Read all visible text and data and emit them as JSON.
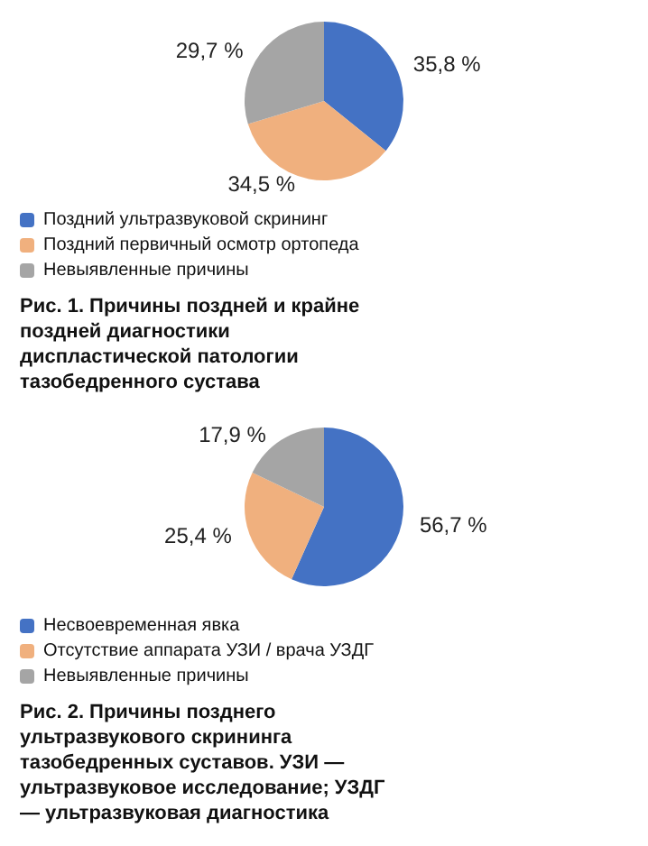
{
  "chart_data": [
    {
      "type": "pie",
      "title": "Рис. 1. Причины поздней и крайне поздней диагностики диспластической патологии тазобедренного сустава",
      "categories": [
        "Поздний ультразвуковой скрининг",
        "Поздний первичный осмотр ортопеда",
        "Невыявленные причины"
      ],
      "values": [
        35.8,
        34.5,
        29.7
      ],
      "colors": [
        "#4472c4",
        "#f0b07e",
        "#a5a5a5"
      ],
      "value_labels": [
        "35,8 %",
        "34,5 %",
        "29,7 %"
      ],
      "legend": "bottom"
    },
    {
      "type": "pie",
      "title": "Рис. 2. Причины позднего ультразвукового скрининга тазобедренных суставов. УЗИ — ультразвуковое исследование; УЗДГ — ультразвуковая диагностика",
      "categories": [
        "Несвоевременная явка",
        "Отсутствие аппарата УЗИ / врача УЗДГ",
        "Невыявленные причины"
      ],
      "values": [
        56.7,
        25.4,
        17.9
      ],
      "colors": [
        "#4472c4",
        "#f0b07e",
        "#a5a5a5"
      ],
      "value_labels": [
        "56,7 %",
        "25,4 %",
        "17,9 %"
      ],
      "legend": "bottom"
    }
  ]
}
